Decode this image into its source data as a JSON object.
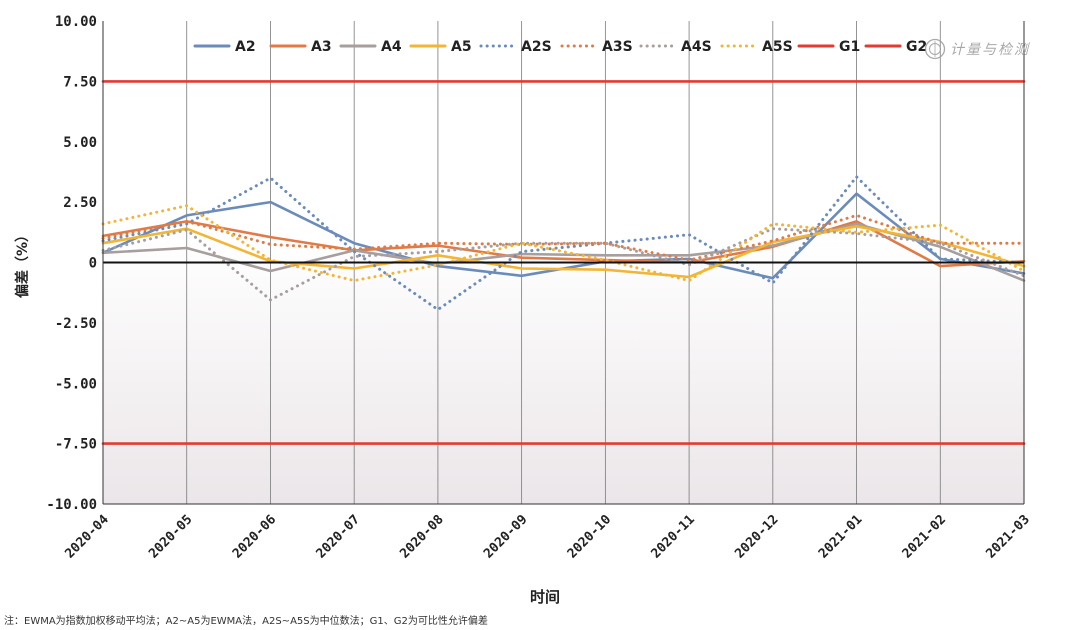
{
  "chart_data": {
    "type": "line",
    "title": "",
    "xlabel": "时间",
    "ylabel": "偏差（%）",
    "ylim": [
      -10,
      10
    ],
    "yticks": [
      "10.00",
      "7.50",
      "5.00",
      "2.50",
      "0",
      "-2.50",
      "-5.00",
      "-7.50",
      "-10.00"
    ],
    "ytick_values": [
      10,
      7.5,
      5,
      2.5,
      0,
      -2.5,
      -5,
      -7.5,
      -10
    ],
    "categories": [
      "2020-04",
      "2020-05",
      "2020-06",
      "2020-07",
      "2020-08",
      "2020-09",
      "2020-10",
      "2020-11",
      "2020-12",
      "2021-01",
      "2021-02",
      "2021-03"
    ],
    "legend_position": "top-right",
    "series": [
      {
        "name": "A2",
        "color": "#6b8cba",
        "style": "solid",
        "values": [
          0.4,
          1.95,
          2.5,
          0.8,
          -0.15,
          -0.55,
          0.05,
          0.15,
          -0.65,
          2.85,
          0.15,
          -0.45
        ]
      },
      {
        "name": "A3",
        "color": "#e07b47",
        "style": "solid",
        "values": [
          1.1,
          1.7,
          1.05,
          0.5,
          0.7,
          0.2,
          0.1,
          0.0,
          0.65,
          1.7,
          -0.15,
          0.05
        ]
      },
      {
        "name": "A4",
        "color": "#a79e9e",
        "style": "solid",
        "values": [
          0.4,
          0.6,
          -0.35,
          0.5,
          -0.05,
          0.35,
          0.3,
          0.3,
          0.7,
          1.6,
          0.65,
          -0.75
        ]
      },
      {
        "name": "A5",
        "color": "#f2b535",
        "style": "solid",
        "values": [
          0.8,
          1.4,
          0.05,
          -0.25,
          0.3,
          -0.25,
          -0.3,
          -0.6,
          0.85,
          1.5,
          0.85,
          -0.15
        ]
      },
      {
        "name": "A2S",
        "color": "#6b8cba",
        "style": "dotted",
        "values": [
          0.9,
          1.6,
          3.5,
          0.45,
          -1.95,
          0.45,
          0.8,
          1.15,
          -0.85,
          3.55,
          0.15,
          0.0
        ]
      },
      {
        "name": "A3S",
        "color": "#e07b47",
        "style": "dotted",
        "values": [
          1.0,
          1.7,
          0.75,
          0.55,
          0.8,
          0.75,
          0.8,
          0.1,
          0.9,
          1.95,
          0.8,
          0.8
        ]
      },
      {
        "name": "A4S",
        "color": "#a79e9e",
        "style": "dotted",
        "values": [
          0.5,
          1.35,
          -1.55,
          0.25,
          0.45,
          0.8,
          0.8,
          -0.1,
          1.4,
          1.2,
          0.8,
          -0.55
        ]
      },
      {
        "name": "A5S",
        "color": "#f2b535",
        "style": "dotted",
        "values": [
          1.6,
          2.35,
          0.1,
          -0.75,
          -0.1,
          0.8,
          0.1,
          -0.75,
          1.6,
          1.25,
          1.55,
          -0.35
        ]
      },
      {
        "name": "G1",
        "color": "#e23b33",
        "style": "solid",
        "values": [
          7.5,
          7.5,
          7.5,
          7.5,
          7.5,
          7.5,
          7.5,
          7.5,
          7.5,
          7.5,
          7.5,
          7.5
        ]
      },
      {
        "name": "G2",
        "color": "#e23b33",
        "style": "solid",
        "values": [
          -7.5,
          -7.5,
          -7.5,
          -7.5,
          -7.5,
          -7.5,
          -7.5,
          -7.5,
          -7.5,
          -7.5,
          -7.5,
          -7.5
        ]
      }
    ]
  },
  "watermark": {
    "text": "计量与检测"
  },
  "note": "注：EWMA为指数加权移动平均法；A2~A5为EWMA法，A2S~A5S为中位数法；G1、G2为可比性允许偏差"
}
